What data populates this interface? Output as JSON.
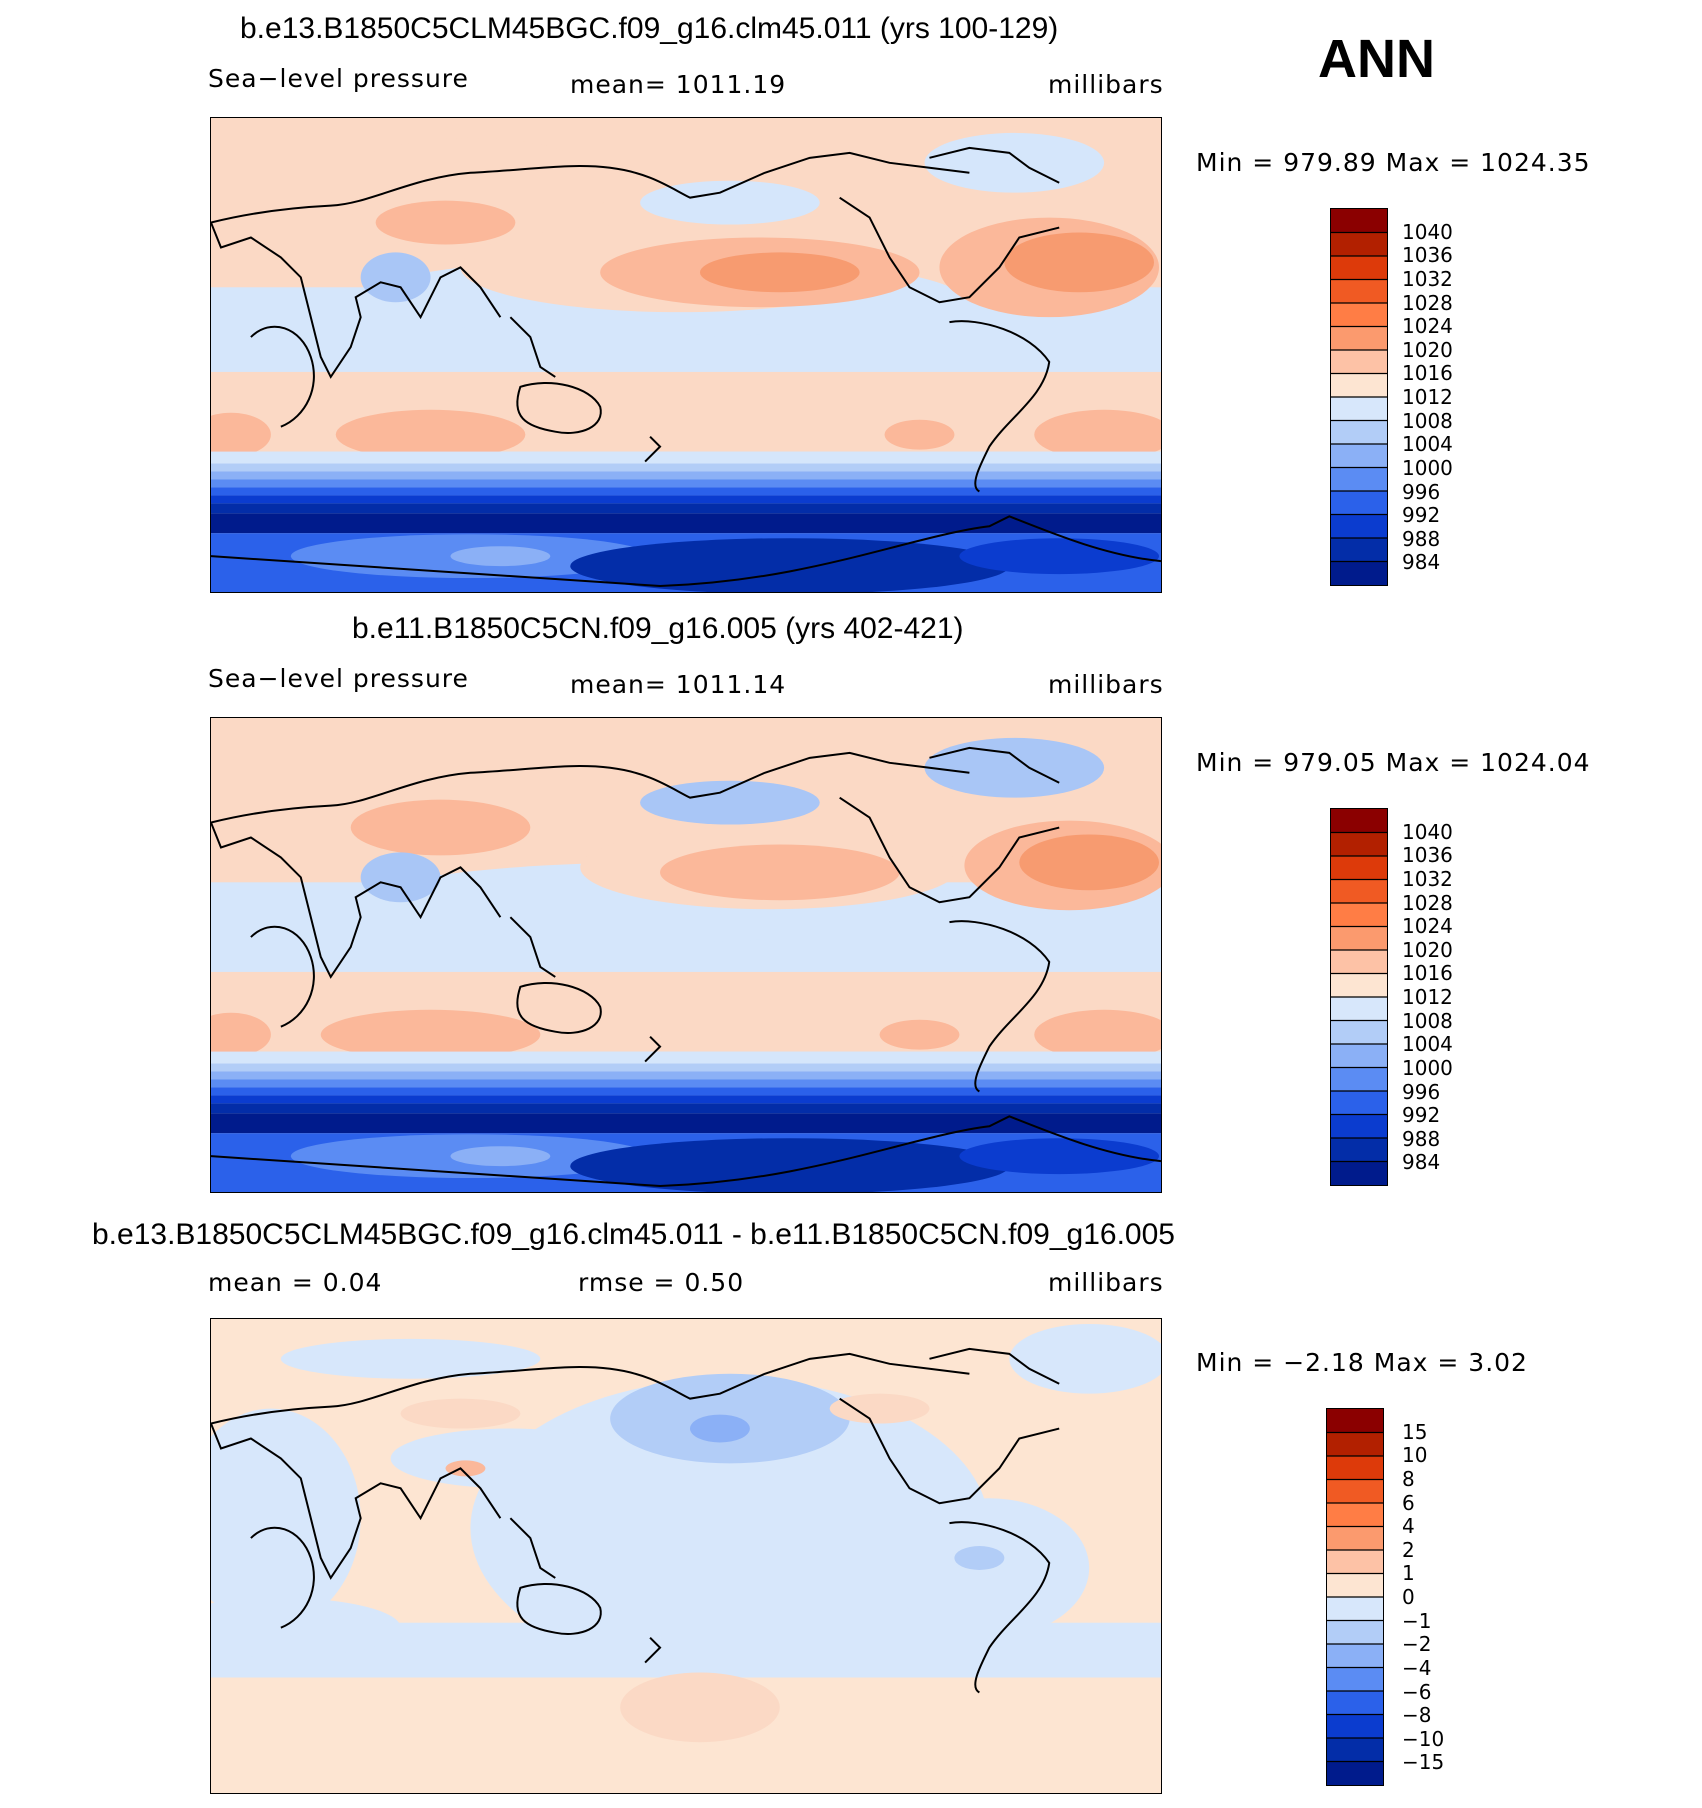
{
  "season": "ANN",
  "panels": [
    {
      "title": "b.e13.B1850C5CLM45BGC.f09_g16.clm45.011 (yrs 100-129)",
      "left_text": "Sea−level pressure",
      "mid_text": "mean=  1011.19",
      "mid2_text": "",
      "units": "millibars",
      "minmax": "Min  =  979.89  Max  =  1024.35",
      "colorbar_labels": [
        "1040",
        "1036",
        "1032",
        "1028",
        "1024",
        "1020",
        "1016",
        "1012",
        "1008",
        "1004",
        "1000",
        "996",
        "992",
        "988",
        "984"
      ],
      "type": "field"
    },
    {
      "title": "b.e11.B1850C5CN.f09_g16.005 (yrs 402-421)",
      "left_text": "Sea−level pressure",
      "mid_text": "mean=  1011.14",
      "mid2_text": "",
      "units": "millibars",
      "minmax": "Min  =  979.05  Max  =  1024.04",
      "colorbar_labels": [
        "1040",
        "1036",
        "1032",
        "1028",
        "1024",
        "1020",
        "1016",
        "1012",
        "1008",
        "1004",
        "1000",
        "996",
        "992",
        "988",
        "984"
      ],
      "type": "field"
    },
    {
      "title": "b.e13.B1850C5CLM45BGC.f09_g16.clm45.011 - b.e11.B1850C5CN.f09_g16.005",
      "left_text": "mean  =     0.04",
      "mid_text": "rmse  =     0.50",
      "mid2_text": "",
      "units": "millibars",
      "minmax": "Min  =   −2.18  Max  =     3.02",
      "colorbar_labels": [
        "15",
        "10",
        "8",
        "6",
        "4",
        "2",
        "1",
        "0",
        "−1",
        "−2",
        "−4",
        "−6",
        "−8",
        "−10",
        "−15"
      ],
      "type": "diff"
    }
  ],
  "colorbar_colors": [
    "#8b0000",
    "#b22000",
    "#dd3a0a",
    "#f05a23",
    "#ff7d45",
    "#fb9a6e",
    "#fdc2a6",
    "#fde5d2",
    "#d7e7fb",
    "#b2cdf7",
    "#8bb0f6",
    "#5b8cf3",
    "#2b61ea",
    "#0b3ccf",
    "#032da8",
    "#001b8c"
  ],
  "field_colors": {
    "high2": "#f79b70",
    "high1": "#fbb89a",
    "mid": "#fbd9c5",
    "low": "#d5e6fb",
    "lowm": "#a9c6f6"
  }
}
